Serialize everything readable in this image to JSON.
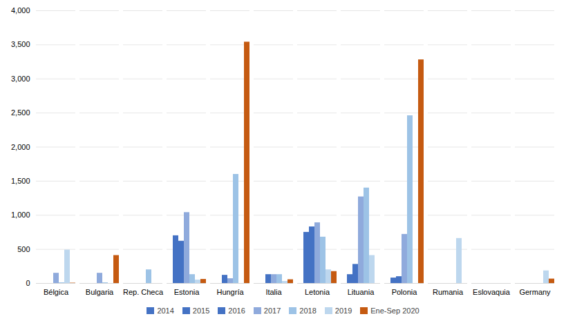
{
  "chart_data": {
    "type": "bar",
    "categories": [
      "Bélgica",
      "Bulgaria",
      "Rep. Checa",
      "Estonia",
      "Hungría",
      "Italia",
      "Letonia",
      "Lituania",
      "Polonia",
      "Rumania",
      "Eslovaquia",
      "Germany"
    ],
    "series": [
      {
        "name": "2014",
        "color": "#4472c4",
        "values": [
          0,
          0,
          0,
          0,
          0,
          0,
          0,
          0,
          0,
          0,
          0,
          0
        ]
      },
      {
        "name": "2015",
        "color": "#4472c4",
        "values": [
          0,
          0,
          0,
          700,
          0,
          0,
          750,
          130,
          80,
          0,
          0,
          0
        ]
      },
      {
        "name": "2016",
        "color": "#4472c4",
        "values": [
          0,
          0,
          0,
          620,
          120,
          130,
          830,
          280,
          100,
          0,
          0,
          0
        ]
      },
      {
        "name": "2017",
        "color": "#8faadc",
        "values": [
          150,
          150,
          0,
          1040,
          70,
          130,
          890,
          1270,
          720,
          0,
          0,
          0
        ]
      },
      {
        "name": "2018",
        "color": "#9dc3e6",
        "values": [
          10,
          10,
          200,
          130,
          1600,
          130,
          680,
          1400,
          2460,
          0,
          0,
          0
        ]
      },
      {
        "name": "2019",
        "color": "#bdd7ee",
        "values": [
          490,
          0,
          0,
          50,
          0,
          30,
          200,
          410,
          0,
          660,
          0,
          185
        ]
      },
      {
        "name": "Ene-Sep 2020",
        "color": "#c55a11",
        "values": [
          5,
          410,
          0,
          60,
          3540,
          55,
          175,
          0,
          3280,
          0,
          0,
          65
        ]
      }
    ],
    "ylim": [
      0,
      4000
    ],
    "yticks": [
      0,
      500,
      1000,
      1500,
      2000,
      2500,
      3000,
      3500,
      4000
    ],
    "grid": true,
    "legend": "bottom"
  }
}
